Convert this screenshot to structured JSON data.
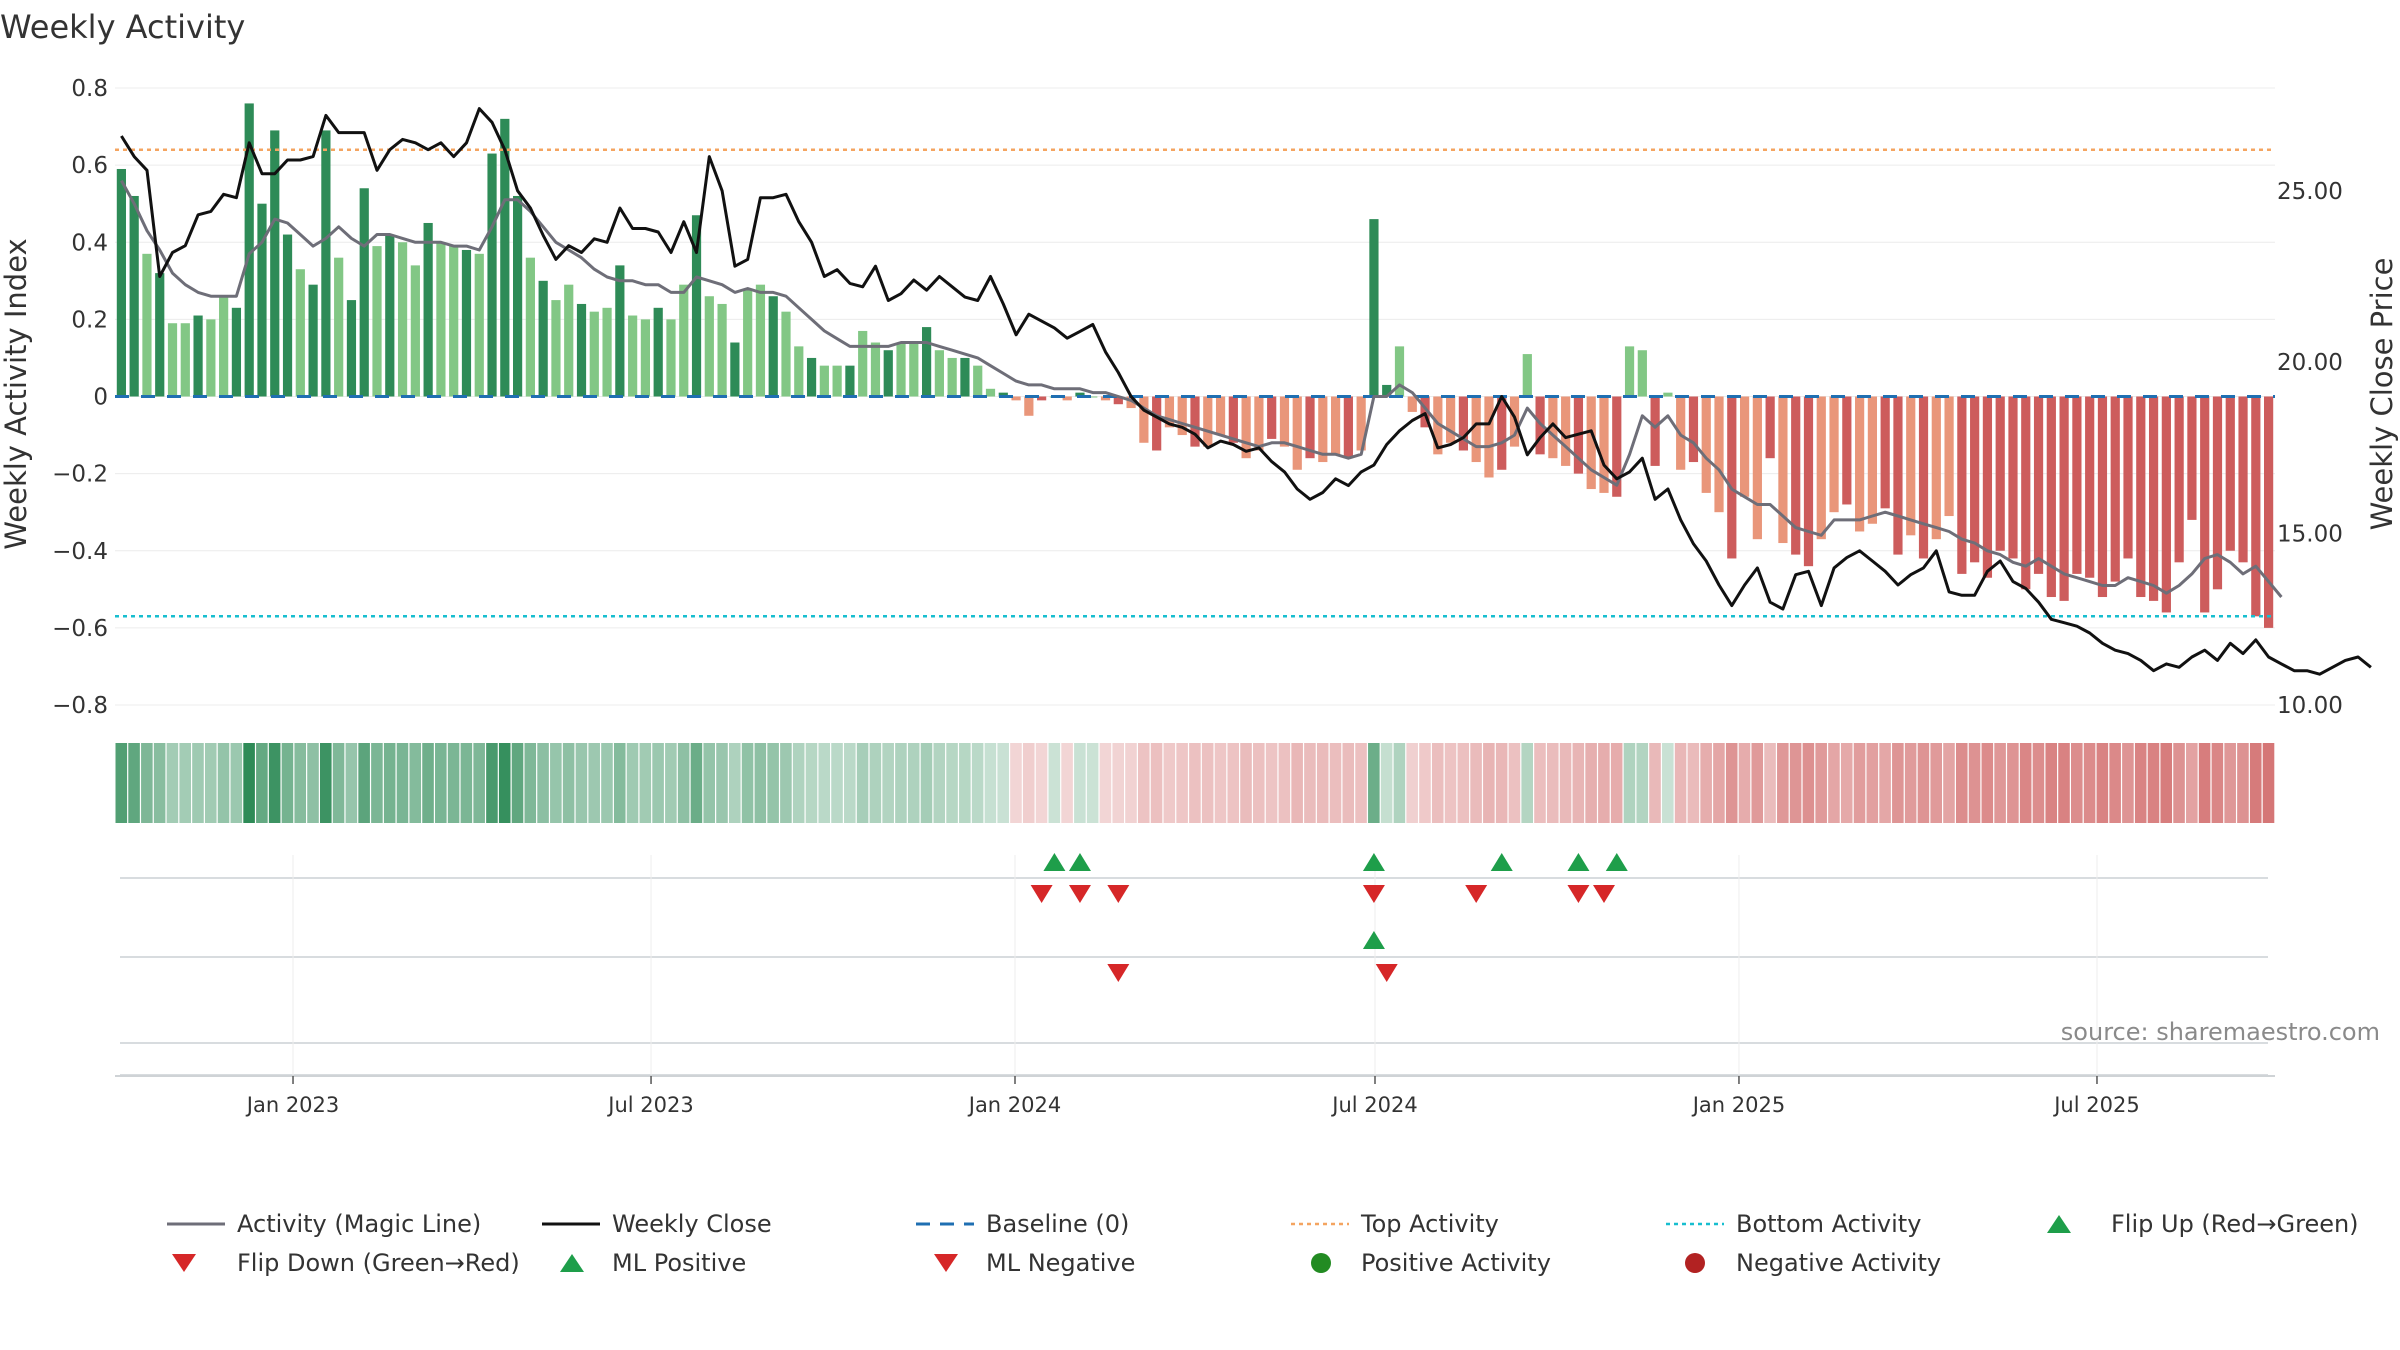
{
  "chart_data": {
    "type": "bar",
    "title": "Weekly Activity",
    "ylabel_left": "Weekly Activity Index",
    "ylabel_right": "Weekly Close Price",
    "ylim_left": [
      -0.8,
      0.8
    ],
    "yticks_left": [
      "0.8",
      "0.6",
      "0.4",
      "0.2",
      "0",
      "−0.2",
      "−0.4",
      "−0.6",
      "−0.8"
    ],
    "ylim_right": [
      10,
      28
    ],
    "yticks_right": [
      "25.00",
      "20.00",
      "15.00",
      "10.00"
    ],
    "x_start": "2022-10-03",
    "x_end": "2025-09-29",
    "xtick_labels": [
      "Jan 2023",
      "Jul 2023",
      "Jan 2024",
      "Jul 2024",
      "Jan 2025",
      "Jul 2025"
    ],
    "xtick_dates": [
      "2023-01-01",
      "2023-07-01",
      "2024-01-01",
      "2024-07-01",
      "2025-01-01",
      "2025-07-01"
    ],
    "top_activity": 0.64,
    "bottom_activity": -0.57,
    "baseline": 0,
    "activity": [
      0.59,
      0.52,
      0.37,
      0.32,
      0.19,
      0.19,
      0.21,
      0.2,
      0.26,
      0.23,
      0.76,
      0.5,
      0.69,
      0.42,
      0.33,
      0.29,
      0.69,
      0.36,
      0.25,
      0.54,
      0.39,
      0.42,
      0.4,
      0.34,
      0.45,
      0.4,
      0.39,
      0.38,
      0.37,
      0.63,
      0.72,
      0.52,
      0.36,
      0.3,
      0.25,
      0.29,
      0.24,
      0.22,
      0.23,
      0.34,
      0.21,
      0.2,
      0.23,
      0.2,
      0.29,
      0.47,
      0.26,
      0.24,
      0.14,
      0.28,
      0.29,
      0.26,
      0.22,
      0.13,
      0.1,
      0.08,
      0.08,
      0.08,
      0.17,
      0.14,
      0.12,
      0.14,
      0.14,
      0.18,
      0.12,
      0.1,
      0.1,
      0.08,
      0.02,
      0.01,
      -0.01,
      -0.05,
      -0.01,
      0.0,
      -0.01,
      0.01,
      0.0,
      -0.01,
      -0.02,
      -0.03,
      -0.12,
      -0.14,
      -0.08,
      -0.1,
      -0.13,
      -0.13,
      -0.1,
      -0.12,
      -0.16,
      -0.14,
      -0.11,
      -0.13,
      -0.19,
      -0.16,
      -0.17,
      -0.15,
      -0.16,
      -0.14,
      0.46,
      0.03,
      0.13,
      -0.04,
      -0.08,
      -0.15,
      -0.12,
      -0.14,
      -0.17,
      -0.21,
      -0.19,
      -0.13,
      0.11,
      -0.15,
      -0.16,
      -0.18,
      -0.2,
      -0.24,
      -0.25,
      -0.26,
      0.13,
      0.12,
      -0.18,
      0.01,
      -0.19,
      -0.17,
      -0.25,
      -0.3,
      -0.42,
      -0.26,
      -0.37,
      -0.16,
      -0.38,
      -0.41,
      -0.44,
      -0.37,
      -0.3,
      -0.28,
      -0.35,
      -0.33,
      -0.29,
      -0.41,
      -0.36,
      -0.42,
      -0.37,
      -0.31,
      -0.46,
      -0.43,
      -0.47,
      -0.4,
      -0.42,
      -0.5,
      -0.46,
      -0.52,
      -0.53,
      -0.46,
      -0.47,
      -0.52,
      -0.48,
      -0.42,
      -0.52,
      -0.53,
      -0.56,
      -0.43,
      -0.32,
      -0.56,
      -0.5,
      -0.4,
      -0.43,
      -0.57,
      -0.6
    ],
    "magic_line": [
      0.56,
      0.5,
      0.43,
      0.38,
      0.32,
      0.29,
      0.27,
      0.26,
      0.26,
      0.26,
      0.37,
      0.4,
      0.46,
      0.45,
      0.42,
      0.39,
      0.41,
      0.44,
      0.41,
      0.39,
      0.42,
      0.42,
      0.41,
      0.4,
      0.4,
      0.4,
      0.39,
      0.39,
      0.38,
      0.44,
      0.51,
      0.51,
      0.48,
      0.44,
      0.4,
      0.38,
      0.36,
      0.33,
      0.31,
      0.3,
      0.3,
      0.29,
      0.29,
      0.27,
      0.27,
      0.31,
      0.3,
      0.29,
      0.27,
      0.28,
      0.27,
      0.27,
      0.26,
      0.23,
      0.2,
      0.17,
      0.15,
      0.13,
      0.13,
      0.13,
      0.13,
      0.14,
      0.14,
      0.14,
      0.13,
      0.12,
      0.11,
      0.1,
      0.08,
      0.06,
      0.04,
      0.03,
      0.03,
      0.02,
      0.02,
      0.02,
      0.01,
      0.01,
      0.0,
      -0.01,
      -0.03,
      -0.05,
      -0.06,
      -0.07,
      -0.08,
      -0.09,
      -0.1,
      -0.11,
      -0.12,
      -0.13,
      -0.12,
      -0.12,
      -0.13,
      -0.14,
      -0.15,
      -0.15,
      -0.16,
      -0.15,
      0.0,
      0.0,
      0.03,
      0.01,
      -0.03,
      -0.07,
      -0.09,
      -0.11,
      -0.13,
      -0.13,
      -0.12,
      -0.1,
      -0.03,
      -0.07,
      -0.1,
      -0.13,
      -0.16,
      -0.19,
      -0.21,
      -0.23,
      -0.15,
      -0.05,
      -0.08,
      -0.05,
      -0.1,
      -0.12,
      -0.16,
      -0.19,
      -0.24,
      -0.26,
      -0.28,
      -0.28,
      -0.31,
      -0.34,
      -0.35,
      -0.36,
      -0.32,
      -0.32,
      -0.32,
      -0.31,
      -0.3,
      -0.31,
      -0.32,
      -0.33,
      -0.34,
      -0.35,
      -0.37,
      -0.38,
      -0.4,
      -0.41,
      -0.43,
      -0.44,
      -0.42,
      -0.44,
      -0.46,
      -0.47,
      -0.48,
      -0.49,
      -0.49,
      -0.47,
      -0.48,
      -0.49,
      -0.51,
      -0.49,
      -0.46,
      -0.42,
      -0.41,
      -0.43,
      -0.46,
      -0.44,
      -0.48,
      -0.52
    ],
    "weekly_close": [
      26.6,
      26.0,
      25.6,
      22.5,
      23.2,
      23.4,
      24.3,
      24.4,
      24.9,
      24.8,
      26.4,
      25.5,
      25.5,
      25.9,
      25.9,
      26.0,
      27.2,
      26.7,
      26.7,
      26.7,
      25.6,
      26.2,
      26.5,
      26.4,
      26.2,
      26.4,
      26.0,
      26.4,
      27.4,
      27.0,
      26.2,
      25.0,
      24.5,
      23.7,
      23.0,
      23.4,
      23.2,
      23.6,
      23.5,
      24.5,
      23.9,
      23.9,
      23.8,
      23.2,
      24.1,
      23.2,
      26.0,
      25.0,
      22.8,
      23.0,
      24.8,
      24.8,
      24.9,
      24.1,
      23.5,
      22.5,
      22.7,
      22.3,
      22.2,
      22.8,
      21.8,
      22.0,
      22.4,
      22.1,
      22.5,
      22.2,
      21.9,
      21.8,
      22.5,
      21.7,
      20.8,
      21.4,
      21.2,
      21.0,
      20.7,
      20.9,
      21.1,
      20.3,
      19.7,
      19.0,
      18.6,
      18.4,
      18.2,
      18.1,
      17.9,
      17.5,
      17.7,
      17.6,
      17.4,
      17.5,
      17.1,
      16.8,
      16.3,
      16.0,
      16.2,
      16.6,
      16.4,
      16.8,
      17.0,
      17.6,
      18.0,
      18.3,
      18.5,
      17.5,
      17.6,
      17.8,
      18.2,
      18.2,
      19.0,
      18.4,
      17.3,
      17.8,
      18.2,
      17.8,
      17.9,
      18.0,
      17.0,
      16.6,
      16.8,
      17.2,
      16.0,
      16.3,
      15.4,
      14.7,
      14.2,
      13.5,
      12.9,
      13.5,
      14.0,
      13.0,
      12.8,
      13.8,
      13.9,
      12.9,
      14.0,
      14.3,
      14.5,
      14.2,
      13.9,
      13.5,
      13.8,
      14.0,
      14.5,
      13.3,
      13.2,
      13.2,
      13.9,
      14.2,
      13.6,
      13.4,
      13.0,
      12.5,
      12.4,
      12.3,
      12.1,
      11.8,
      11.6,
      11.5,
      11.3,
      11.0,
      11.2,
      11.1,
      11.4,
      11.6,
      11.3,
      11.8,
      11.5,
      11.9,
      11.4,
      11.2,
      11.0,
      11.0,
      10.9,
      11.1,
      11.3,
      11.4,
      11.1
    ],
    "flip_up_weeks": [
      73,
      75,
      98,
      108,
      114,
      117
    ],
    "flip_down_weeks": [
      72,
      75,
      78,
      98,
      106,
      114,
      116
    ],
    "ml_positive_weeks": [
      98
    ],
    "ml_negative_weeks": [
      78,
      99
    ],
    "source": "source: sharemaestro.com",
    "colors": {
      "pos_strong": "#2e8b57",
      "pos_light": "#82c785",
      "neg_strong": "#cd5c5c",
      "neg_light": "#e9967a",
      "magic_line": "#6e6e78",
      "close_line": "#111111",
      "baseline": "#1f6fb2",
      "top_line": "#f4a460",
      "bottom_line": "#17becf",
      "flip_up": "#1e9e4a",
      "flip_down": "#d62728",
      "pos_dot": "#228b22",
      "neg_dot": "#b22222"
    }
  },
  "legend": {
    "magic_line": "Activity (Magic Line)",
    "weekly_close": "Weekly Close",
    "baseline": "Baseline (0)",
    "top_activity": "Top Activity",
    "bottom_activity": "Bottom Activity",
    "flip_up": "Flip Up (Red→Green)",
    "flip_down": "Flip Down (Green→Red)",
    "ml_positive": "ML Positive",
    "ml_negative": "ML Negative",
    "positive_activity": "Positive Activity",
    "negative_activity": "Negative Activity"
  }
}
